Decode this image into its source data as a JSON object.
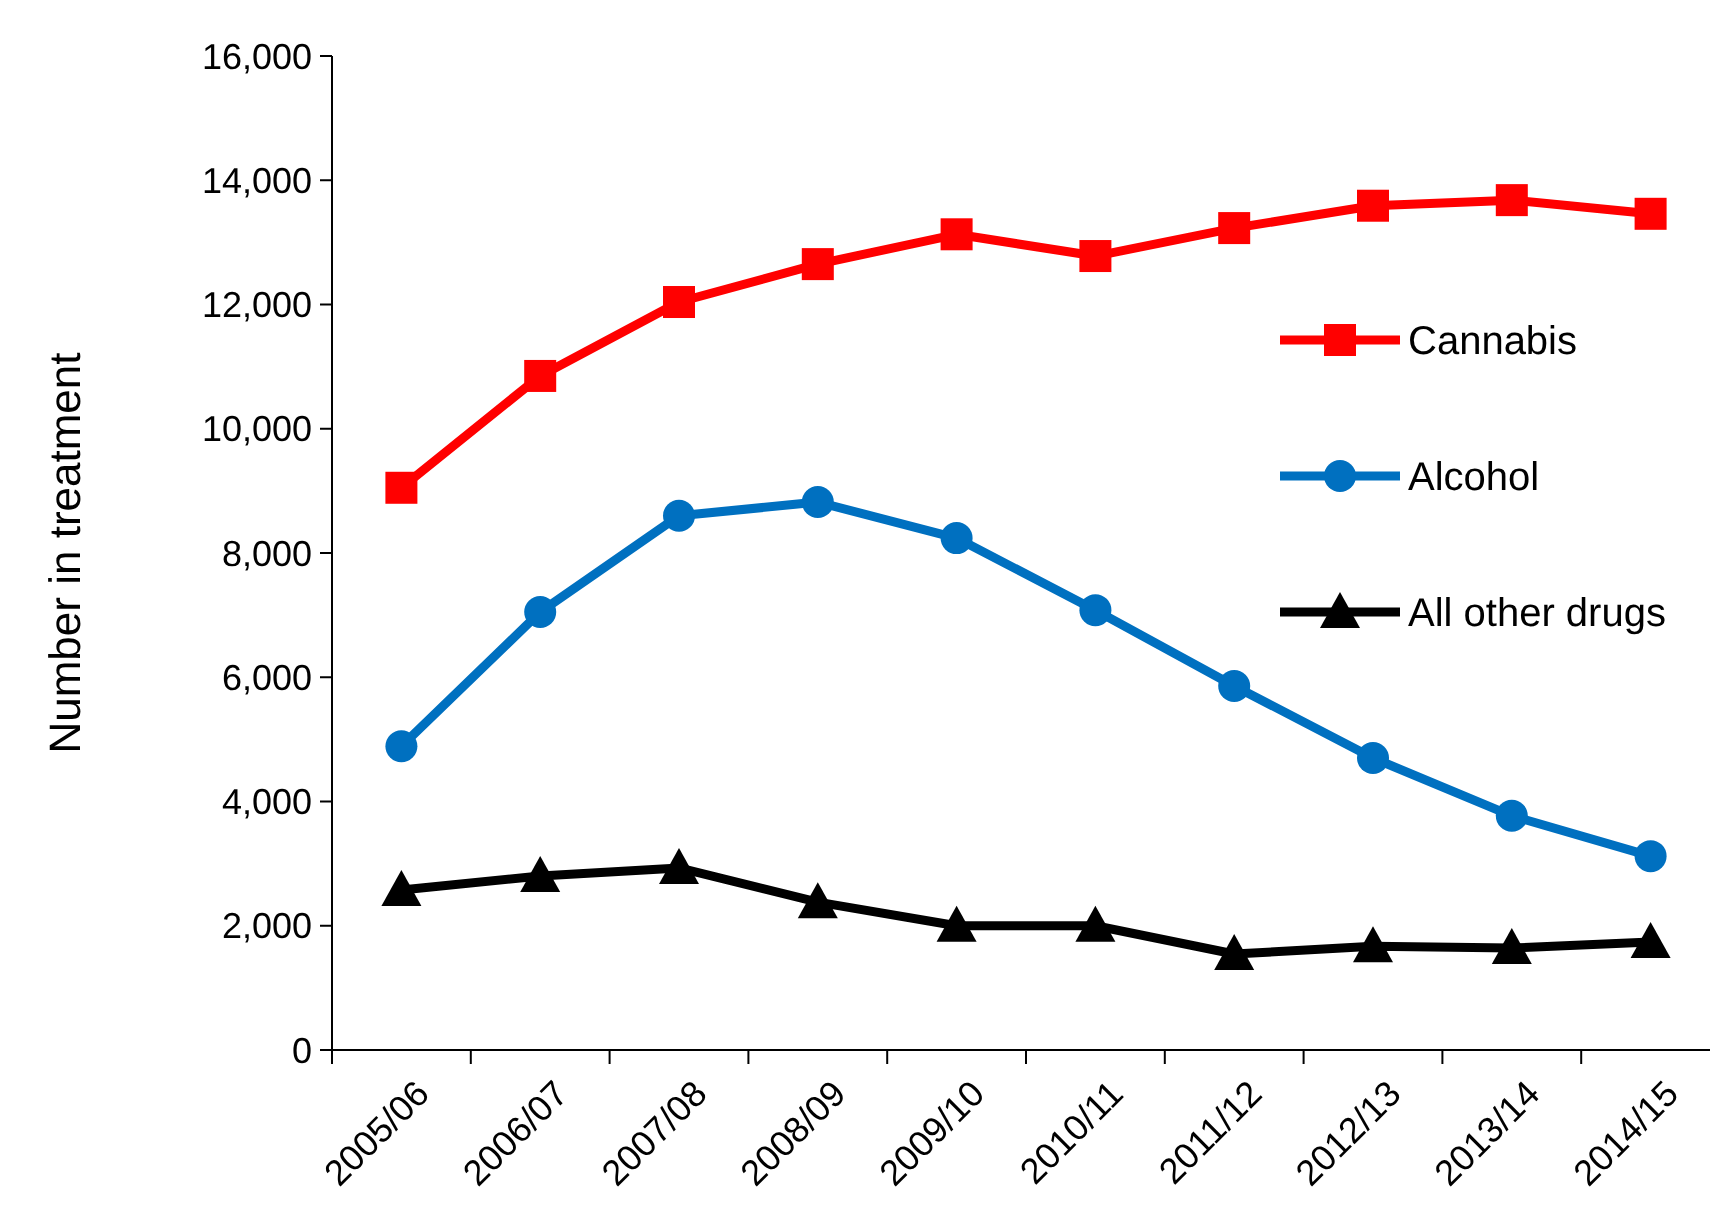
{
  "chart_data": {
    "type": "line",
    "ylabel": "Number in treatment",
    "categories": [
      "2005/06",
      "2006/07",
      "2007/08",
      "2008/09",
      "2009/10",
      "2010/11",
      "2011/12",
      "2012/13",
      "2013/14",
      "2014/15"
    ],
    "series": [
      {
        "name": "Cannabis",
        "color": "#ff0000",
        "marker": "square",
        "values": [
          9050,
          10850,
          12040,
          12650,
          13130,
          12780,
          13230,
          13590,
          13680,
          13460
        ]
      },
      {
        "name": "Alcohol",
        "color": "#0070c0",
        "marker": "circle",
        "values": [
          4890,
          7050,
          8600,
          8820,
          8240,
          7080,
          5860,
          4700,
          3770,
          3120
        ]
      },
      {
        "name": "All other drugs",
        "color": "#000000",
        "marker": "triangle",
        "values": [
          2575,
          2800,
          2930,
          2380,
          2000,
          2000,
          1545,
          1670,
          1640,
          1740
        ]
      }
    ],
    "ylim": [
      0,
      16000
    ],
    "yticks": [
      {
        "value": 0,
        "label": "0"
      },
      {
        "value": 2000,
        "label": "2,000"
      },
      {
        "value": 4000,
        "label": "4,000"
      },
      {
        "value": 6000,
        "label": "6,000"
      },
      {
        "value": 8000,
        "label": "8,000"
      },
      {
        "value": 10000,
        "label": "10,000"
      },
      {
        "value": 12000,
        "label": "12,000"
      },
      {
        "value": 14000,
        "label": "14,000"
      },
      {
        "value": 16000,
        "label": "16,000"
      }
    ],
    "grid": false,
    "legend": "right",
    "line_style": "solid"
  }
}
